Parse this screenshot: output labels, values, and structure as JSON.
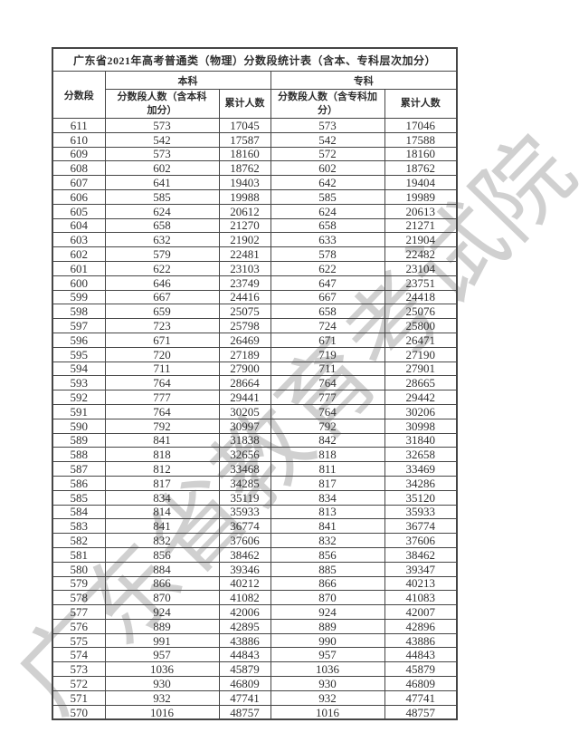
{
  "document": {
    "title": "广东省2021年高考普通类（物理）分数段统计表（含本、专科层次加分）"
  },
  "watermark": {
    "text": "广东省教育考试院",
    "color": "#d0d0d0"
  },
  "table": {
    "col_score": "分数段",
    "group_benke": "本科",
    "group_zhuanke": "专科",
    "col_benke_count": "分数段人数（含本科\n加分）",
    "col_benke_cum": "累计人数",
    "col_zhuanke_count": "分数段人数（含专科加\n分）",
    "col_zhuanke_cum": "累计人数",
    "rows": [
      [
        611,
        573,
        17045,
        573,
        17046
      ],
      [
        610,
        542,
        17587,
        542,
        17588
      ],
      [
        609,
        573,
        18160,
        572,
        18160
      ],
      [
        608,
        602,
        18762,
        602,
        18762
      ],
      [
        607,
        641,
        19403,
        642,
        19404
      ],
      [
        606,
        585,
        19988,
        585,
        19989
      ],
      [
        605,
        624,
        20612,
        624,
        20613
      ],
      [
        604,
        658,
        21270,
        658,
        21271
      ],
      [
        603,
        632,
        21902,
        633,
        21904
      ],
      [
        602,
        579,
        22481,
        578,
        22482
      ],
      [
        601,
        622,
        23103,
        622,
        23104
      ],
      [
        600,
        646,
        23749,
        647,
        23751
      ],
      [
        599,
        667,
        24416,
        667,
        24418
      ],
      [
        598,
        659,
        25075,
        658,
        25076
      ],
      [
        597,
        723,
        25798,
        724,
        25800
      ],
      [
        596,
        671,
        26469,
        671,
        26471
      ],
      [
        595,
        720,
        27189,
        719,
        27190
      ],
      [
        594,
        711,
        27900,
        711,
        27901
      ],
      [
        593,
        764,
        28664,
        764,
        28665
      ],
      [
        592,
        777,
        29441,
        777,
        29442
      ],
      [
        591,
        764,
        30205,
        764,
        30206
      ],
      [
        590,
        792,
        30997,
        792,
        30998
      ],
      [
        589,
        841,
        31838,
        842,
        31840
      ],
      [
        588,
        818,
        32656,
        818,
        32658
      ],
      [
        587,
        812,
        33468,
        811,
        33469
      ],
      [
        586,
        817,
        34285,
        817,
        34286
      ],
      [
        585,
        834,
        35119,
        834,
        35120
      ],
      [
        584,
        814,
        35933,
        813,
        35933
      ],
      [
        583,
        841,
        36774,
        841,
        36774
      ],
      [
        582,
        832,
        37606,
        832,
        37606
      ],
      [
        581,
        856,
        38462,
        856,
        38462
      ],
      [
        580,
        884,
        39346,
        885,
        39347
      ],
      [
        579,
        866,
        40212,
        866,
        40213
      ],
      [
        578,
        870,
        41082,
        870,
        41083
      ],
      [
        577,
        924,
        42006,
        924,
        42007
      ],
      [
        576,
        889,
        42895,
        889,
        42896
      ],
      [
        575,
        991,
        43886,
        990,
        43886
      ],
      [
        574,
        957,
        44843,
        957,
        44843
      ],
      [
        573,
        1036,
        45879,
        1036,
        45879
      ],
      [
        572,
        930,
        46809,
        930,
        46809
      ],
      [
        571,
        932,
        47741,
        932,
        47741
      ],
      [
        570,
        1016,
        48757,
        1016,
        48757
      ]
    ]
  }
}
